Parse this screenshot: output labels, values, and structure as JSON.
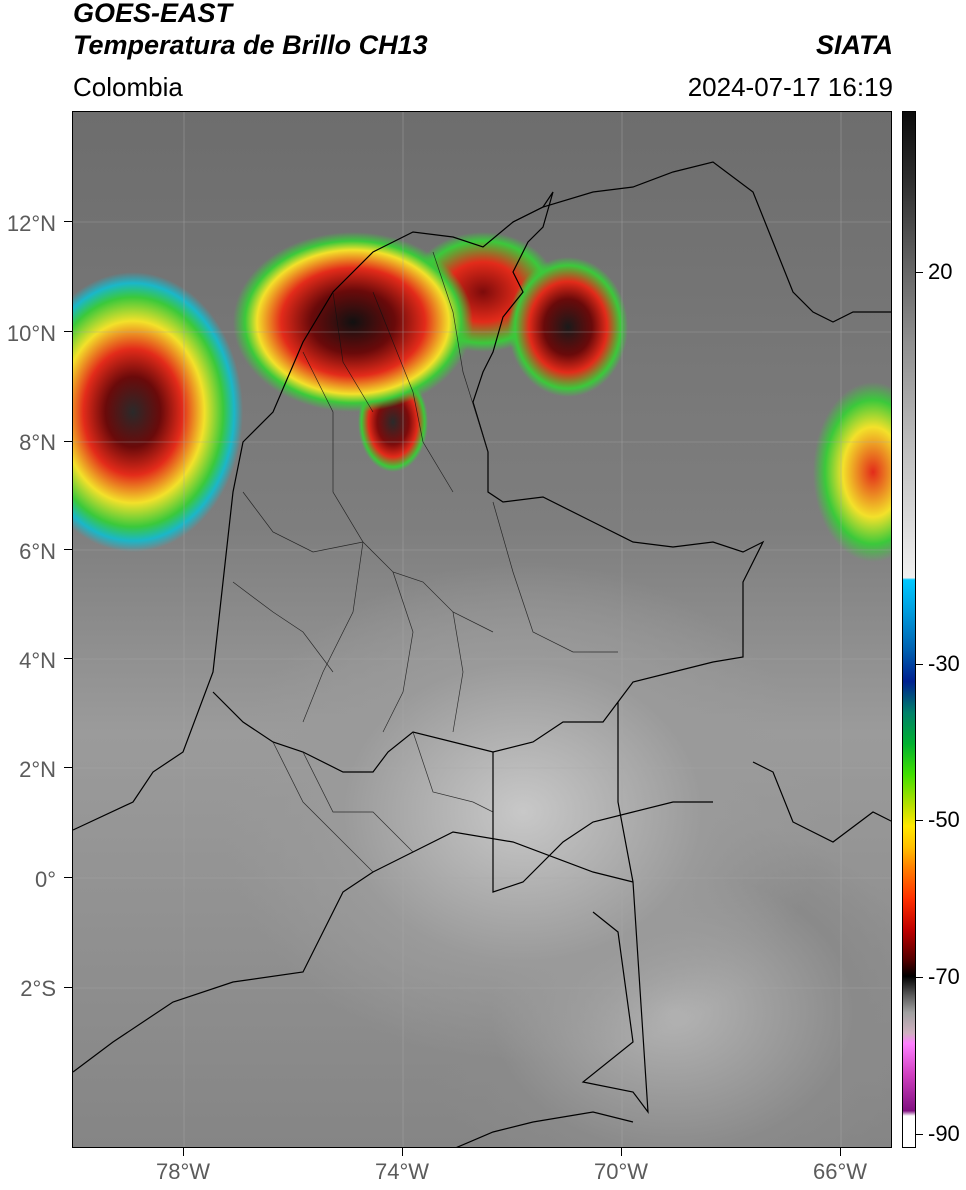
{
  "header": {
    "title_line1": "GOES-EAST",
    "title_line2": "Temperatura de Brillo CH13",
    "source": "SIATA",
    "region": "Colombia",
    "timestamp": "2024-07-17 16:19"
  },
  "axes": {
    "latitude_labels": [
      "12°N",
      "10°N",
      "8°N",
      "6°N",
      "4°N",
      "2°N",
      "0°",
      "2°S"
    ],
    "longitude_labels": [
      "78°W",
      "74°W",
      "70°W",
      "66°W"
    ]
  },
  "colorbar": {
    "tick_labels": [
      "20",
      "-30",
      "-50",
      "-70",
      "-90"
    ]
  }
}
